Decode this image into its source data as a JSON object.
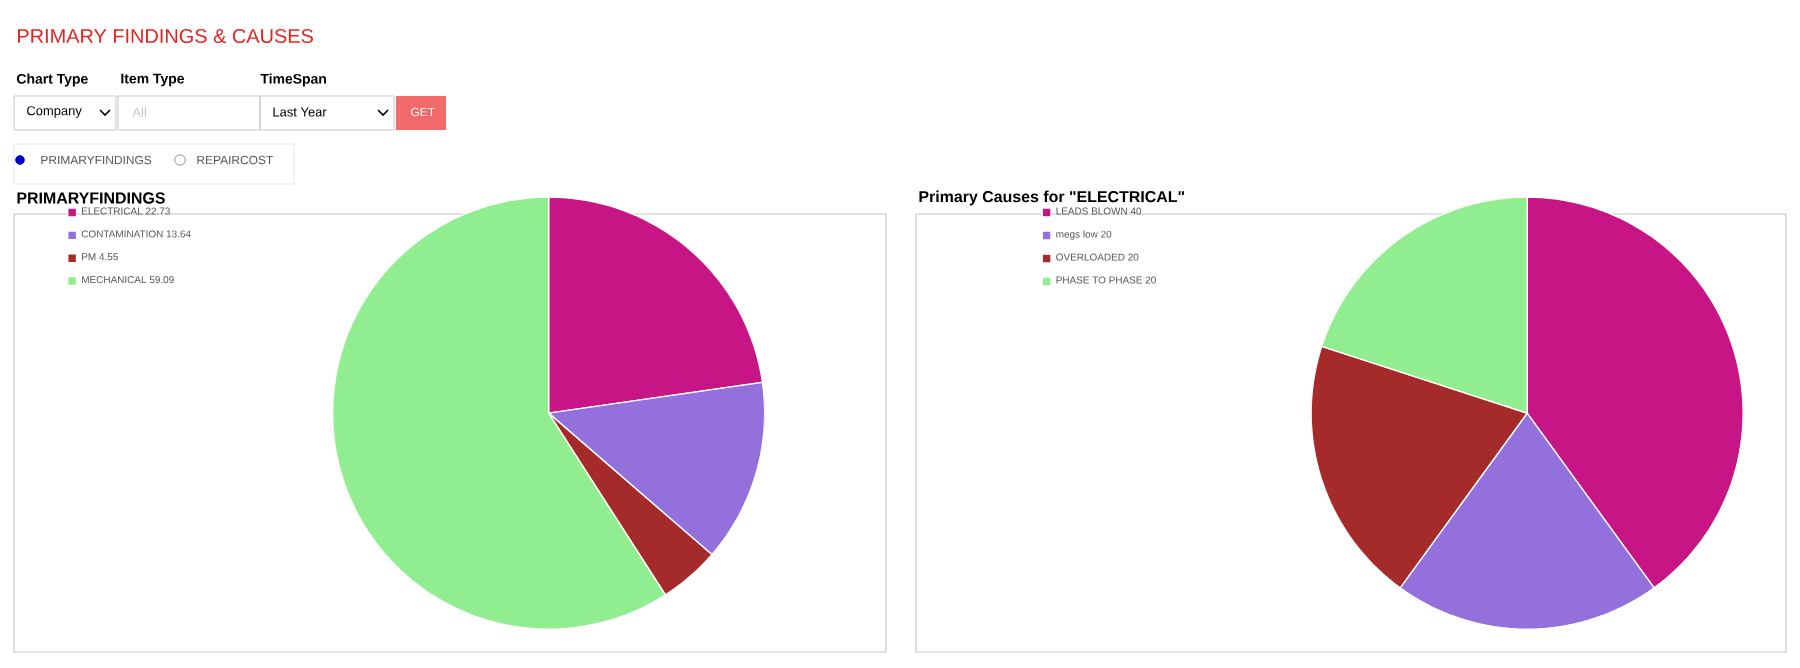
{
  "chart_data": [
    {
      "type": "pie",
      "title": "PRIMARYFINDINGS",
      "categories": [
        "ELECTRICAL",
        "CONTAMINATION",
        "PM",
        "MECHANICAL"
      ],
      "values": [
        22.73,
        13.64,
        4.55,
        59.09
      ],
      "value_labels": [
        "22.73",
        "13.64",
        "4.55",
        "59.09"
      ],
      "colors": [
        "#c71585",
        "#9370db",
        "#a52a2a",
        "#90ee90"
      ],
      "legend": "top left",
      "annotations": [
        "PRIMARY FINDINGS & CAUSES",
        "Chart Type",
        "Item Type",
        "TimeSpan",
        "Company",
        "All",
        "Last Year",
        "GET",
        "PRIMARYFINDINGS",
        "REPAIRCOST"
      ]
    },
    {
      "type": "pie",
      "title": "Primary Causes for \"ELECTRICAL\"",
      "categories": [
        "LEADS BLOWN",
        "megs low",
        "OVERLOADED",
        "PHASE TO PHASE"
      ],
      "values": [
        40,
        20,
        20,
        20
      ],
      "value_labels": [
        "40",
        "20",
        "20",
        "20"
      ],
      "colors": [
        "#c71585",
        "#9370db",
        "#a52a2a",
        "#90ee90"
      ],
      "legend": "top left"
    }
  ]
}
